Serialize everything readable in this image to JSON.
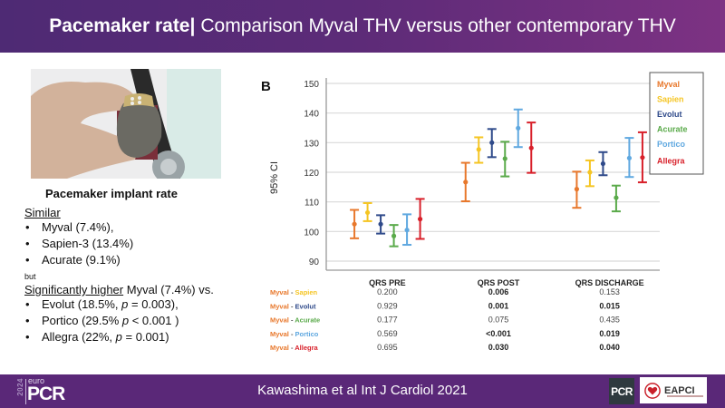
{
  "header": {
    "title_bold": "Pacemaker rate",
    "separator": "|",
    "title_rest": "Comparison Myval THV versus other contemporary THV"
  },
  "photo": {
    "description": "hand holding pacemaker device"
  },
  "left_panel": {
    "title": "Pacemaker implant rate",
    "similar_label": "Similar",
    "similar_items": [
      "Myval (7.4%),",
      "Sapien-3 (13.4%)",
      "Acurate (9.1%)"
    ],
    "but_label": "but",
    "significant_label": "Significantly higher",
    "significant_suffix": " Myval (7.4%) vs.",
    "significant_items": [
      {
        "pre": "Evolut (18.5%, ",
        "p": "p",
        "post": " = 0.003),"
      },
      {
        "pre": "Portico (29.5% ",
        "p": "p",
        "post": " < 0.001 )"
      },
      {
        "pre": "Allegra (22%, ",
        "p": "p",
        "post": " = 0.001)"
      }
    ]
  },
  "chart_data": {
    "type": "errorbar",
    "panel_label": "B",
    "title": "",
    "ylabel": "95% CI",
    "xlabel": "",
    "ylim": [
      90,
      150
    ],
    "yticks": [
      90,
      100,
      110,
      120,
      130,
      140,
      150
    ],
    "grid": true,
    "legend_position": "top-right",
    "categories": [
      "QRS PRE",
      "QRS POST",
      "QRS DISCHARGE"
    ],
    "series": [
      {
        "name": "Myval",
        "color": "#e8782c",
        "mean": [
          102.5,
          116.7,
          114.3
        ],
        "lower": [
          97.7,
          110.2,
          108.0
        ],
        "upper": [
          107.3,
          123.2,
          120.2
        ]
      },
      {
        "name": "Sapien",
        "color": "#f5c523",
        "mean": [
          106.4,
          127.7,
          120.0
        ],
        "lower": [
          103.5,
          123.2,
          115.3
        ],
        "upper": [
          109.6,
          131.8,
          124.0
        ]
      },
      {
        "name": "Evolut",
        "color": "#2f4a8a",
        "mean": [
          102.5,
          130.0,
          122.9
        ],
        "lower": [
          99.3,
          125.1,
          119.0
        ],
        "upper": [
          105.5,
          134.6,
          126.8
        ]
      },
      {
        "name": "Acurate",
        "color": "#5aaa4a",
        "mean": [
          98.5,
          124.6,
          111.4
        ],
        "lower": [
          95.0,
          118.6,
          106.8
        ],
        "upper": [
          102.2,
          130.3,
          115.5
        ]
      },
      {
        "name": "Portico",
        "color": "#5fa8e0",
        "mean": [
          100.5,
          134.9,
          124.8
        ],
        "lower": [
          95.5,
          128.5,
          118.4
        ],
        "upper": [
          105.8,
          141.2,
          131.6
        ]
      },
      {
        "name": "Allegra",
        "color": "#d8202a",
        "mean": [
          104.2,
          128.2,
          125.0
        ],
        "lower": [
          97.5,
          119.8,
          116.6
        ],
        "upper": [
          111.0,
          136.8,
          133.5
        ]
      }
    ],
    "pvalue_table": {
      "columns": [
        "QRS PRE",
        "QRS POST",
        "QRS DISCHARGE"
      ],
      "rows": [
        {
          "left": "Myval",
          "sep": " - ",
          "right": "Sapien",
          "right_color": "#f5c523",
          "values": [
            "0.200",
            "0.006",
            "0.153"
          ],
          "bold": [
            false,
            true,
            false
          ]
        },
        {
          "left": "Myval",
          "sep": " - ",
          "right": "Evolut",
          "right_color": "#2f4a8a",
          "values": [
            "0.929",
            "0.001",
            "0.015"
          ],
          "bold": [
            false,
            true,
            true
          ]
        },
        {
          "left": "Myval",
          "sep": " - ",
          "right": "Acurate",
          "right_color": "#5aaa4a",
          "values": [
            "0.177",
            "0.075",
            "0.435"
          ],
          "bold": [
            false,
            false,
            false
          ]
        },
        {
          "left": "Myval",
          "sep": " - ",
          "right": "Portico",
          "right_color": "#5fa8e0",
          "values": [
            "0.569",
            "<0.001",
            "0.019"
          ],
          "bold": [
            false,
            true,
            true
          ]
        },
        {
          "left": "Myval",
          "sep": " - ",
          "right": "Allegra",
          "right_color": "#d8202a",
          "values": [
            "0.695",
            "0.030",
            "0.040"
          ],
          "bold": [
            false,
            true,
            true
          ]
        }
      ],
      "left_color": "#e8782c"
    }
  },
  "footer": {
    "citation": "Kawashima et al Int J Cardiol 2021",
    "logo_year": "2024",
    "logo_euro": "euro",
    "logo_pcr": "PCR",
    "partner_pcr": "PCR",
    "partner_eapci": "EAPCI"
  }
}
